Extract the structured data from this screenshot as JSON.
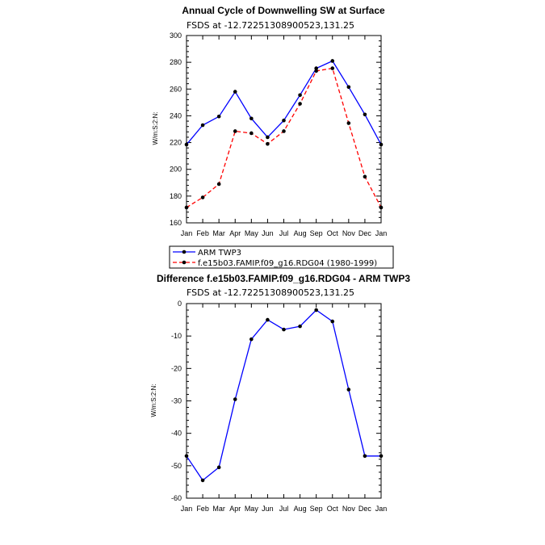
{
  "chart_data": [
    {
      "type": "line",
      "title": "Annual Cycle of Downwelling SW at Surface",
      "subtitle": "FSDS at -12.72251308900523,131.25",
      "ylabel": "W/m:S:2:N:",
      "categories": [
        "Jan",
        "Feb",
        "Mar",
        "Apr",
        "May",
        "Jun",
        "Jul",
        "Aug",
        "Sep",
        "Oct",
        "Nov",
        "Dec",
        "Jan"
      ],
      "ylim": [
        160,
        300
      ],
      "yticks": [
        160,
        180,
        200,
        220,
        240,
        260,
        280,
        300
      ],
      "series": [
        {
          "name": "ARM TWP3",
          "color": "#0000ff",
          "dash": "solid",
          "values": [
            218.5,
            233,
            239.5,
            258,
            238,
            224,
            236.5,
            255.5,
            275.5,
            281,
            261.5,
            241,
            218.5
          ]
        },
        {
          "name": "f.e15b03.FAMIP.f09_g16.RDG04 (1980-1999)",
          "color": "#ff0000",
          "dash": "dashed",
          "values": [
            171.5,
            179,
            189,
            228.5,
            227,
            219,
            228.5,
            249,
            273.5,
            275.5,
            234.5,
            194.5,
            171.5
          ]
        }
      ]
    },
    {
      "type": "line",
      "title": "Difference f.e15b03.FAMIP.f09_g16.RDG04 - ARM TWP3",
      "subtitle": "FSDS at -12.72251308900523,131.25",
      "ylabel": "W/m:S:2:N:",
      "categories": [
        "Jan",
        "Feb",
        "Mar",
        "Apr",
        "May",
        "Jun",
        "Jul",
        "Aug",
        "Sep",
        "Oct",
        "Nov",
        "Dec",
        "Jan"
      ],
      "ylim": [
        -60,
        0
      ],
      "yticks": [
        -60,
        -50,
        -40,
        -30,
        -20,
        -10,
        0
      ],
      "series": [
        {
          "name": "",
          "color": "#0000ff",
          "dash": "solid",
          "values": [
            -47,
            -54.5,
            -50.5,
            -29.5,
            -11,
            -5,
            -8,
            -7,
            -2,
            -5.5,
            -26.5,
            -47,
            -47
          ]
        }
      ]
    }
  ]
}
